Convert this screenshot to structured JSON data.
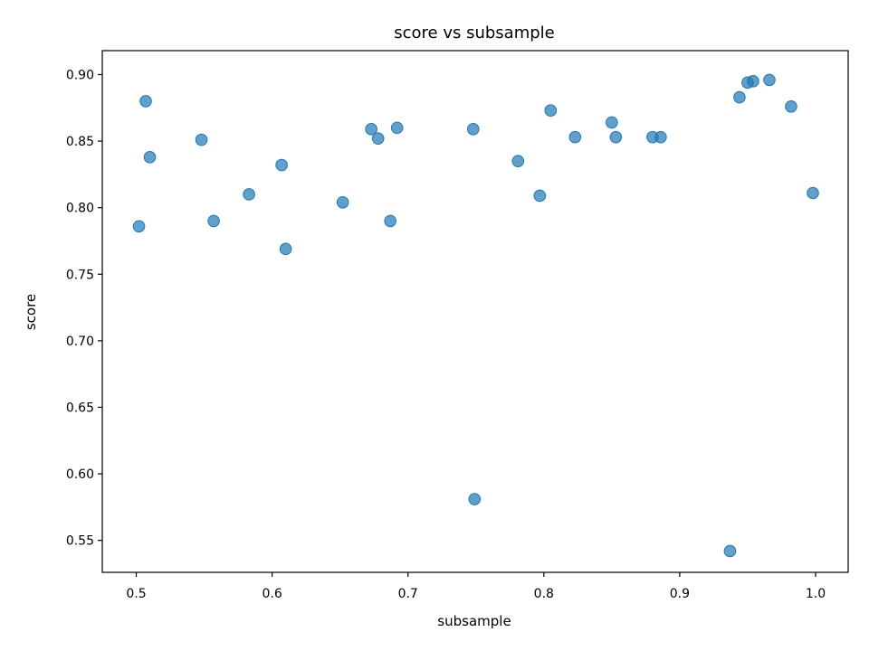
{
  "chart_data": {
    "type": "scatter",
    "title": "score vs subsample",
    "xlabel": "subsample",
    "ylabel": "score",
    "xlim": [
      0.475,
      1.024
    ],
    "ylim": [
      0.526,
      0.918
    ],
    "xticks": [
      0.5,
      0.6,
      0.7,
      0.8,
      0.9,
      1.0
    ],
    "xtick_labels": [
      "0.5",
      "0.6",
      "0.7",
      "0.8",
      "0.9",
      "1.0"
    ],
    "yticks": [
      0.55,
      0.6,
      0.65,
      0.7,
      0.75,
      0.8,
      0.85,
      0.9
    ],
    "ytick_labels": [
      "0.55",
      "0.60",
      "0.65",
      "0.70",
      "0.75",
      "0.80",
      "0.85",
      "0.90"
    ],
    "grid": false,
    "marker_color": "#1f77b4",
    "points": [
      {
        "x": 0.502,
        "y": 0.786
      },
      {
        "x": 0.507,
        "y": 0.88
      },
      {
        "x": 0.51,
        "y": 0.838
      },
      {
        "x": 0.548,
        "y": 0.851
      },
      {
        "x": 0.557,
        "y": 0.79
      },
      {
        "x": 0.583,
        "y": 0.81
      },
      {
        "x": 0.607,
        "y": 0.832
      },
      {
        "x": 0.61,
        "y": 0.769
      },
      {
        "x": 0.652,
        "y": 0.804
      },
      {
        "x": 0.673,
        "y": 0.859
      },
      {
        "x": 0.678,
        "y": 0.852
      },
      {
        "x": 0.687,
        "y": 0.79
      },
      {
        "x": 0.692,
        "y": 0.86
      },
      {
        "x": 0.748,
        "y": 0.859
      },
      {
        "x": 0.749,
        "y": 0.581
      },
      {
        "x": 0.781,
        "y": 0.835
      },
      {
        "x": 0.797,
        "y": 0.809
      },
      {
        "x": 0.805,
        "y": 0.873
      },
      {
        "x": 0.823,
        "y": 0.853
      },
      {
        "x": 0.85,
        "y": 0.864
      },
      {
        "x": 0.853,
        "y": 0.853
      },
      {
        "x": 0.88,
        "y": 0.853
      },
      {
        "x": 0.886,
        "y": 0.853
      },
      {
        "x": 0.937,
        "y": 0.542
      },
      {
        "x": 0.944,
        "y": 0.883
      },
      {
        "x": 0.95,
        "y": 0.894
      },
      {
        "x": 0.954,
        "y": 0.895
      },
      {
        "x": 0.966,
        "y": 0.896
      },
      {
        "x": 0.982,
        "y": 0.876
      },
      {
        "x": 0.998,
        "y": 0.811
      }
    ]
  }
}
